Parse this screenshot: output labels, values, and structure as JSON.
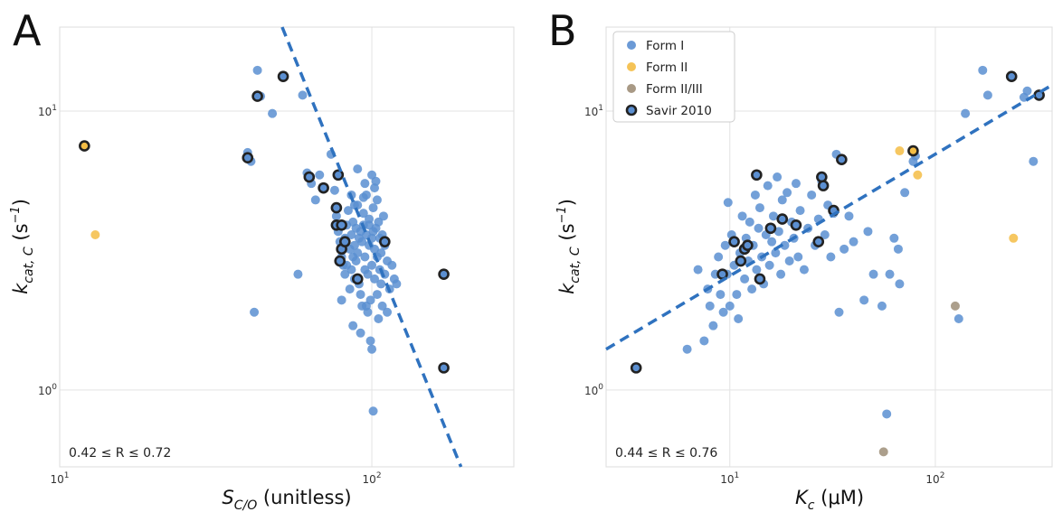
{
  "colors": {
    "form1": "#5b8fd1",
    "form2": "#f4bd45",
    "form23": "#9e8e78",
    "savir_edge": "#222222",
    "fit": "#2f72bf"
  },
  "chart_data": [
    {
      "type": "scatter",
      "panel": "A",
      "xlabel_main": "S",
      "xlabel_sub": "C/O",
      "xlabel_rest": " (unitless)",
      "ylabel_main": "k",
      "ylabel_sub": "cat, C",
      "ylabel_rest_open": " (s",
      "ylabel_sup": "−1",
      "ylabel_rest_close": ")",
      "xscale": "log",
      "yscale": "log",
      "xlim": [
        10,
        285
      ],
      "ylim": [
        0.53,
        20
      ],
      "x_ticks": [
        {
          "value": 10,
          "base": "10",
          "exp": "1"
        },
        {
          "value": 100,
          "base": "10",
          "exp": "2"
        }
      ],
      "y_ticks": [
        {
          "value": 1,
          "base": "10",
          "exp": "0"
        },
        {
          "value": 10,
          "base": "10",
          "exp": "1"
        }
      ],
      "grid": true,
      "annotation": "0.42 ≤ R ≤ 0.72",
      "fit_line": {
        "points": [
          [
            51.6,
            20
          ],
          [
            193,
            0.53
          ]
        ]
      },
      "series": [
        {
          "name": "Form I",
          "points": [
            [
              43,
              14
            ],
            [
              44,
              11.3
            ],
            [
              48,
              9.8
            ],
            [
              40,
              7.1
            ],
            [
              41,
              6.6
            ],
            [
              60,
              11.4
            ],
            [
              42,
              1.9
            ],
            [
              58,
              2.6
            ],
            [
              62,
              6.0
            ],
            [
              64,
              5.5
            ],
            [
              66,
              4.8
            ],
            [
              68,
              5.9
            ],
            [
              74,
              7.0
            ],
            [
              76,
              5.2
            ],
            [
              77,
              4.2
            ],
            [
              78,
              3.7
            ],
            [
              79,
              3.4
            ],
            [
              80,
              3.0
            ],
            [
              81,
              2.8
            ],
            [
              82,
              2.6
            ],
            [
              82,
              3.5
            ],
            [
              83,
              3.9
            ],
            [
              84,
              4.4
            ],
            [
              85,
              3.2
            ],
            [
              85,
              2.3
            ],
            [
              86,
              2.7
            ],
            [
              86,
              3.6
            ],
            [
              87,
              3.0
            ],
            [
              87,
              4.0
            ],
            [
              88,
              3.3
            ],
            [
              88,
              2.5
            ],
            [
              89,
              3.8
            ],
            [
              89,
              2.9
            ],
            [
              90,
              3.1
            ],
            [
              90,
              4.6
            ],
            [
              91,
              3.5
            ],
            [
              91,
              2.4
            ],
            [
              92,
              3.7
            ],
            [
              92,
              2.2
            ],
            [
              93,
              2.0
            ],
            [
              93,
              3.4
            ],
            [
              94,
              3.9
            ],
            [
              94,
              4.3
            ],
            [
              95,
              2.7
            ],
            [
              95,
              3.0
            ],
            [
              96,
              3.6
            ],
            [
              96,
              5.0
            ],
            [
              97,
              1.9
            ],
            [
              97,
              2.6
            ],
            [
              98,
              3.3
            ],
            [
              98,
              4.1
            ],
            [
              99,
              2.1
            ],
            [
              99,
              1.5
            ],
            [
              100,
              1.4
            ],
            [
              100,
              3.5
            ],
            [
              100,
              2.8
            ],
            [
              101,
              4.5
            ],
            [
              101,
              0.84
            ],
            [
              102,
              3.2
            ],
            [
              102,
              2.5
            ],
            [
              103,
              3.8
            ],
            [
              103,
              5.6
            ],
            [
              104,
              2.2
            ],
            [
              104,
              3.0
            ],
            [
              105,
              4.0
            ],
            [
              105,
              1.8
            ],
            [
              106,
              2.7
            ],
            [
              106,
              3.5
            ],
            [
              107,
              3.1
            ],
            [
              107,
              2.4
            ],
            [
              108,
              3.6
            ],
            [
              108,
              2.0
            ],
            [
              109,
              4.2
            ],
            [
              110,
              3.3
            ],
            [
              110,
              2.6
            ],
            [
              112,
              2.9
            ],
            [
              112,
              1.9
            ],
            [
              114,
              2.3
            ],
            [
              116,
              2.8
            ],
            [
              118,
              2.5
            ],
            [
              120,
              2.4
            ],
            [
              80,
              2.1
            ],
            [
              83,
              2.8
            ],
            [
              87,
              1.7
            ],
            [
              92,
              1.6
            ],
            [
              96,
              2.0
            ],
            [
              100,
              5.9
            ],
            [
              102,
              5.3
            ],
            [
              104,
              4.8
            ],
            [
              95,
              5.5
            ],
            [
              90,
              6.2
            ],
            [
              86,
              5.0
            ],
            [
              88,
              4.6
            ],
            [
              94,
              4.9
            ],
            [
              98,
              3.9
            ],
            [
              101,
              3.7
            ]
          ]
        },
        {
          "name": "Form II",
          "points": [
            [
              13,
              3.6
            ]
          ]
        }
      ],
      "savir_points": [
        [
          12,
          7.5,
          "form2"
        ],
        [
          43,
          11.3,
          "form1"
        ],
        [
          52,
          13.3,
          "form1"
        ],
        [
          40,
          6.8,
          "form1"
        ],
        [
          63,
          5.8,
          "form1"
        ],
        [
          70,
          5.3,
          "form1"
        ],
        [
          78,
          5.9,
          "form1"
        ],
        [
          77,
          4.5,
          "form1"
        ],
        [
          77,
          3.9,
          "form1"
        ],
        [
          80,
          3.9,
          "form1"
        ],
        [
          80,
          3.2,
          "form1"
        ],
        [
          82,
          3.4,
          "form1"
        ],
        [
          79,
          2.9,
          "form1"
        ],
        [
          90,
          2.5,
          "form1"
        ],
        [
          110,
          3.4,
          "form1"
        ],
        [
          170,
          2.6,
          "form1"
        ],
        [
          170,
          1.2,
          "form1"
        ]
      ]
    },
    {
      "type": "scatter",
      "panel": "B",
      "xlabel_main": "K",
      "xlabel_sub": "c",
      "xlabel_rest": " (μM)",
      "ylabel_main": "k",
      "ylabel_sub": "cat, C",
      "ylabel_rest_open": " (s",
      "ylabel_sup": "−1",
      "ylabel_rest_close": ")",
      "xscale": "log",
      "yscale": "log",
      "xlim": [
        2.5,
        370
      ],
      "ylim": [
        0.53,
        20
      ],
      "x_ticks": [
        {
          "value": 10,
          "base": "10",
          "exp": "1"
        },
        {
          "value": 100,
          "base": "10",
          "exp": "2"
        }
      ],
      "y_ticks": [
        {
          "value": 1,
          "base": "10",
          "exp": "0"
        },
        {
          "value": 10,
          "base": "10",
          "exp": "1"
        }
      ],
      "grid": true,
      "annotation": "0.44 ≤ R ≤ 0.76",
      "legend_position": "top-left",
      "fit_line": {
        "points": [
          [
            2.5,
            1.4
          ],
          [
            370,
            12.4
          ]
        ]
      },
      "series": [
        {
          "name": "Form I",
          "points": [
            [
              6.2,
              1.4
            ],
            [
              7.0,
              2.7
            ],
            [
              7.5,
              1.5
            ],
            [
              7.8,
              2.3
            ],
            [
              8.0,
              2.0
            ],
            [
              8.3,
              1.7
            ],
            [
              8.5,
              2.6
            ],
            [
              8.8,
              3.0
            ],
            [
              9.0,
              2.2
            ],
            [
              9.3,
              1.9
            ],
            [
              9.5,
              3.3
            ],
            [
              9.7,
              2.6
            ],
            [
              9.8,
              4.7
            ],
            [
              10.0,
              2.0
            ],
            [
              10.2,
              3.6
            ],
            [
              10.5,
              2.8
            ],
            [
              10.8,
              2.2
            ],
            [
              11.0,
              1.8
            ],
            [
              11.2,
              3.1
            ],
            [
              11.5,
              4.2
            ],
            [
              11.8,
              2.5
            ],
            [
              12.0,
              3.5
            ],
            [
              12.3,
              2.9
            ],
            [
              12.5,
              4.0
            ],
            [
              12.8,
              2.3
            ],
            [
              13.0,
              3.3
            ],
            [
              13.3,
              5.0
            ],
            [
              13.5,
              2.7
            ],
            [
              13.8,
              3.8
            ],
            [
              14.0,
              4.5
            ],
            [
              14.3,
              3.0
            ],
            [
              14.6,
              2.4
            ],
            [
              15.0,
              3.6
            ],
            [
              15.3,
              5.4
            ],
            [
              15.6,
              2.8
            ],
            [
              16.0,
              3.4
            ],
            [
              16.3,
              4.2
            ],
            [
              16.7,
              3.1
            ],
            [
              17.0,
              5.8
            ],
            [
              17.3,
              3.7
            ],
            [
              17.7,
              2.6
            ],
            [
              18.0,
              4.8
            ],
            [
              18.5,
              3.3
            ],
            [
              19.0,
              5.1
            ],
            [
              19.5,
              2.9
            ],
            [
              20.0,
              4.0
            ],
            [
              20.5,
              3.5
            ],
            [
              21.0,
              5.5
            ],
            [
              21.5,
              3.0
            ],
            [
              22.0,
              4.4
            ],
            [
              23.0,
              2.7
            ],
            [
              24.0,
              3.8
            ],
            [
              25.0,
              5.0
            ],
            [
              26.0,
              3.3
            ],
            [
              27.0,
              4.1
            ],
            [
              28.0,
              5.6
            ],
            [
              29.0,
              3.6
            ],
            [
              30.0,
              4.6
            ],
            [
              31.0,
              3.0
            ],
            [
              32.0,
              4.3
            ],
            [
              33.0,
              7.0
            ],
            [
              34.0,
              1.9
            ],
            [
              36.0,
              3.2
            ],
            [
              38.0,
              4.2
            ],
            [
              40.0,
              3.4
            ],
            [
              45.0,
              2.1
            ],
            [
              47.0,
              3.7
            ],
            [
              50.0,
              2.6
            ],
            [
              55.0,
              2.0
            ],
            [
              58.0,
              0.82
            ],
            [
              60.0,
              2.6
            ],
            [
              63.0,
              3.5
            ],
            [
              66.0,
              3.2
            ],
            [
              67.0,
              2.4
            ],
            [
              71.0,
              5.1
            ],
            [
              78.0,
              6.6
            ],
            [
              80.0,
              6.9
            ],
            [
              130.0,
              1.8
            ],
            [
              140.0,
              9.8
            ],
            [
              170.0,
              14.0
            ],
            [
              180.0,
              11.4
            ],
            [
              270.0,
              11.2
            ],
            [
              280.0,
              11.8
            ],
            [
              300.0,
              6.6
            ]
          ]
        },
        {
          "name": "Form II",
          "points": [
            [
              67,
              7.2
            ],
            [
              82,
              5.9
            ],
            [
              240,
              3.5
            ]
          ]
        },
        {
          "name": "Form II/III",
          "points": [
            [
              125,
              2.0
            ],
            [
              56,
              0.6
            ]
          ]
        }
      ],
      "savir_points": [
        [
          3.5,
          1.2,
          "form1"
        ],
        [
          9.2,
          2.6,
          "form1"
        ],
        [
          10.5,
          3.4,
          "form1"
        ],
        [
          11.3,
          2.9,
          "form1"
        ],
        [
          11.8,
          3.2,
          "form1"
        ],
        [
          12.2,
          3.3,
          "form1"
        ],
        [
          13.5,
          5.9,
          "form1"
        ],
        [
          14.0,
          2.5,
          "form1"
        ],
        [
          15.8,
          3.8,
          "form1"
        ],
        [
          18.0,
          4.1,
          "form1"
        ],
        [
          21.0,
          3.9,
          "form1"
        ],
        [
          27.0,
          3.4,
          "form1"
        ],
        [
          28.0,
          5.8,
          "form1"
        ],
        [
          28.5,
          5.4,
          "form1"
        ],
        [
          32.0,
          4.4,
          "form1"
        ],
        [
          35.0,
          6.7,
          "form1"
        ],
        [
          78.0,
          7.2,
          "form2"
        ],
        [
          235.0,
          13.3,
          "form1"
        ],
        [
          320.0,
          11.4,
          "form1"
        ]
      ],
      "legend": [
        {
          "label": "Form I",
          "marker": "form1"
        },
        {
          "label": "Form II",
          "marker": "form2"
        },
        {
          "label": "Form II/III",
          "marker": "form23"
        },
        {
          "label": "Savir 2010",
          "marker": "savir"
        }
      ]
    }
  ]
}
